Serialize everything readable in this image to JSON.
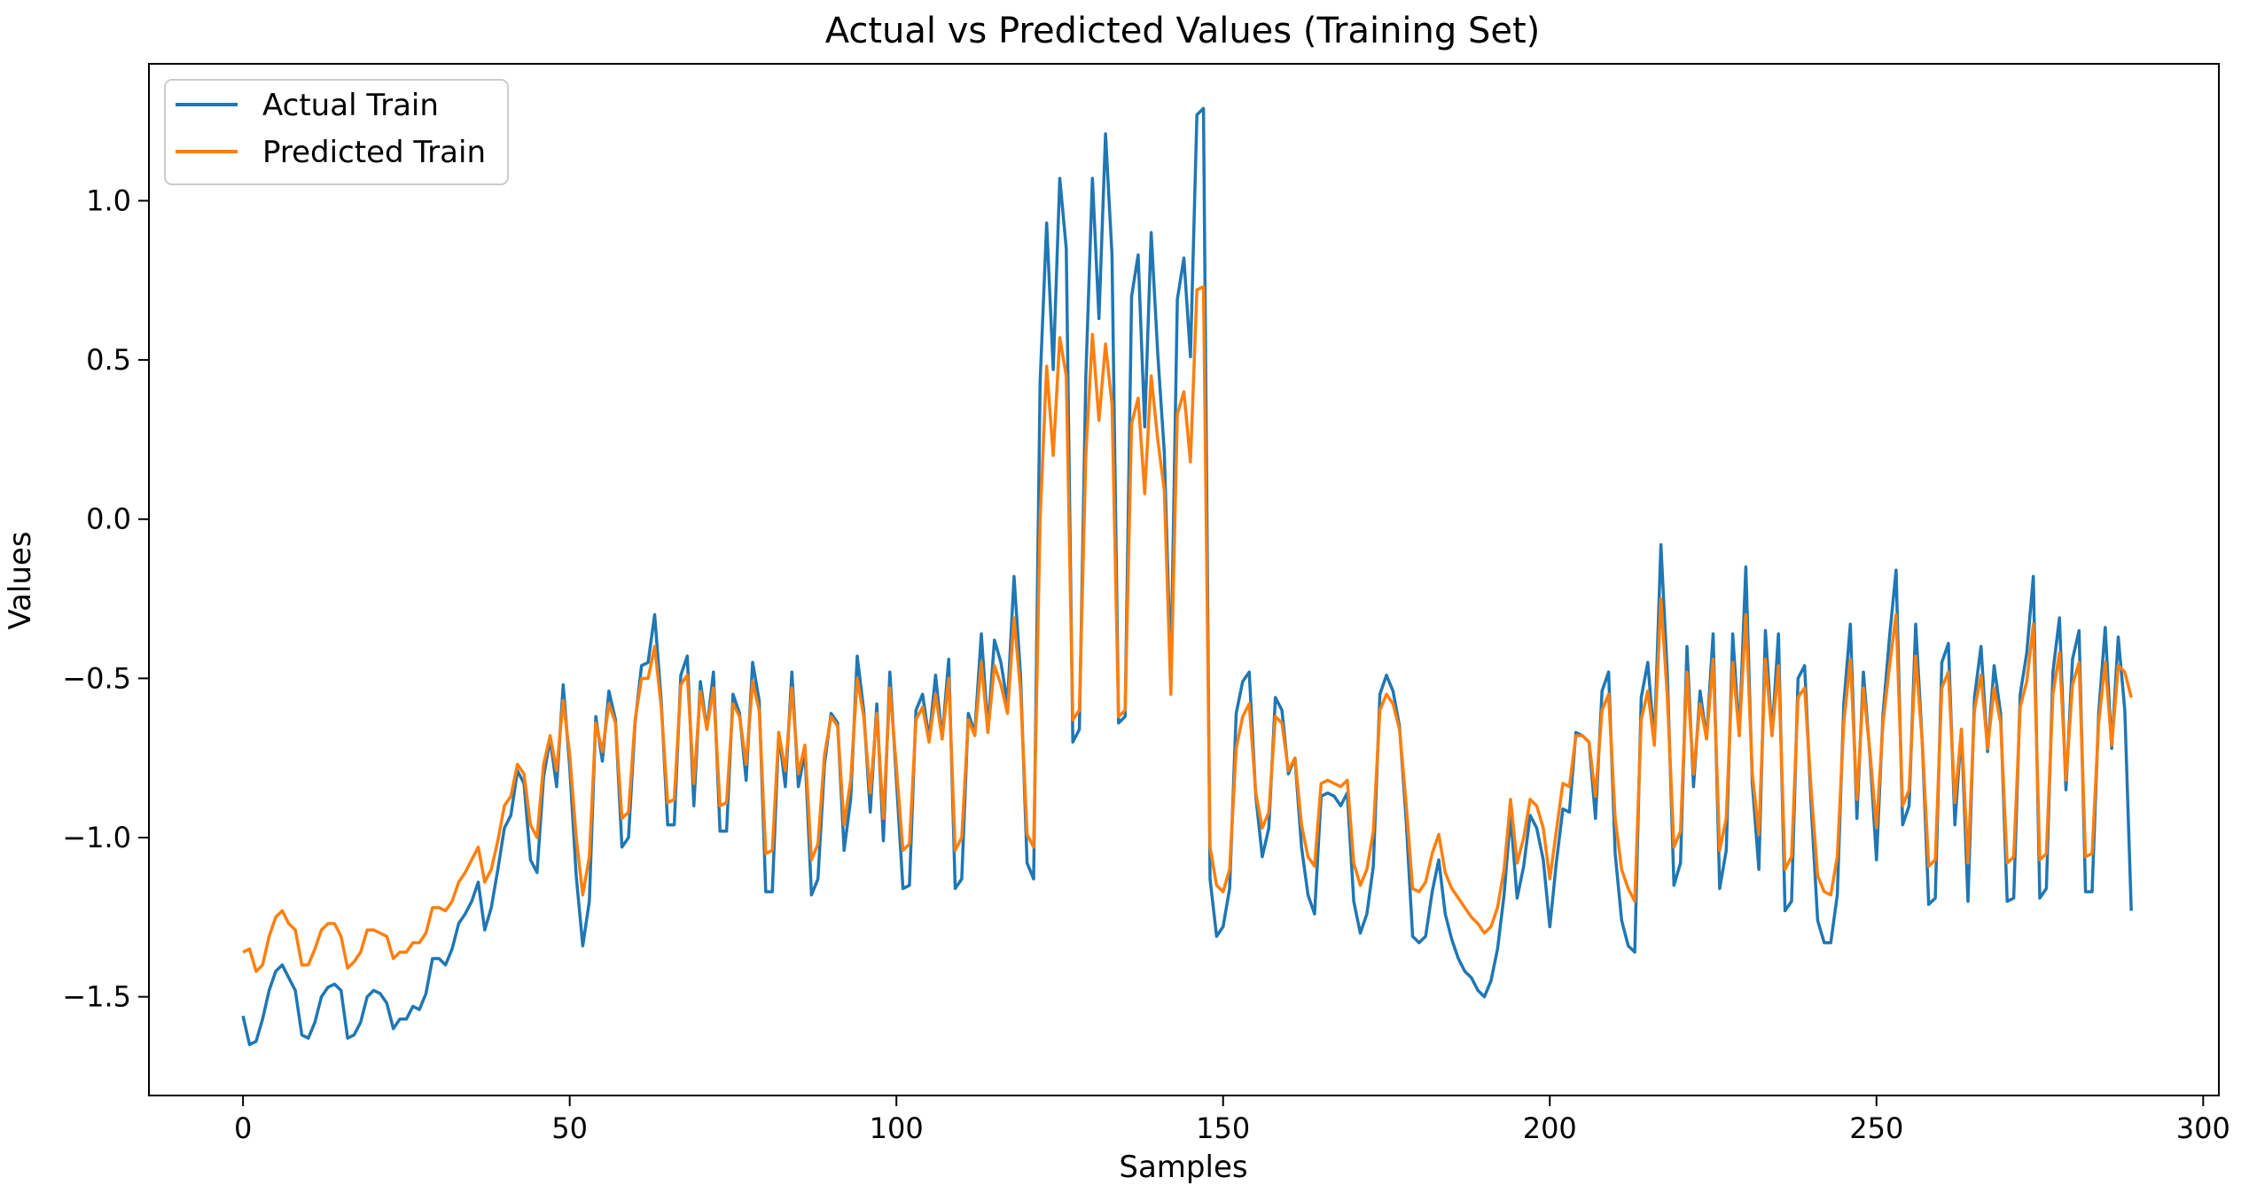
{
  "chart_data": {
    "type": "line",
    "title": "Actual vs Predicted Values (Training Set)",
    "xlabel": "Samples",
    "ylabel": "Values",
    "xlim": [
      -14.4,
      302.4
    ],
    "ylim": [
      -1.81,
      1.43
    ],
    "xticks": [
      0,
      50,
      100,
      150,
      200,
      250,
      300
    ],
    "yticks": [
      -1.5,
      -1.0,
      -0.5,
      0.0,
      0.5,
      1.0
    ],
    "xtick_labels": [
      "0",
      "50",
      "100",
      "150",
      "200",
      "250",
      "300"
    ],
    "ytick_labels": [
      "−1.5",
      "−1.0",
      "−0.5",
      "0.0",
      "0.5",
      "1.0"
    ],
    "grid": false,
    "legend_position": "upper-left",
    "series": [
      {
        "name": "Actual Train",
        "color": "#1f77b4",
        "values": [
          -1.56,
          -1.65,
          -1.64,
          -1.57,
          -1.48,
          -1.42,
          -1.4,
          -1.44,
          -1.48,
          -1.62,
          -1.63,
          -1.58,
          -1.5,
          -1.47,
          -1.46,
          -1.48,
          -1.63,
          -1.62,
          -1.58,
          -1.5,
          -1.48,
          -1.49,
          -1.52,
          -1.6,
          -1.57,
          -1.57,
          -1.53,
          -1.54,
          -1.49,
          -1.38,
          -1.38,
          -1.4,
          -1.35,
          -1.27,
          -1.24,
          -1.2,
          -1.14,
          -1.29,
          -1.22,
          -1.1,
          -0.97,
          -0.93,
          -0.79,
          -0.83,
          -1.07,
          -1.11,
          -0.81,
          -0.69,
          -0.84,
          -0.52,
          -0.78,
          -1.12,
          -1.34,
          -1.2,
          -0.62,
          -0.76,
          -0.54,
          -0.63,
          -1.03,
          -1.0,
          -0.64,
          -0.46,
          -0.45,
          -0.3,
          -0.57,
          -0.96,
          -0.96,
          -0.49,
          -0.43,
          -0.9,
          -0.51,
          -0.66,
          -0.48,
          -0.98,
          -0.98,
          -0.55,
          -0.61,
          -0.82,
          -0.45,
          -0.57,
          -1.17,
          -1.17,
          -0.67,
          -0.84,
          -0.48,
          -0.84,
          -0.73,
          -1.18,
          -1.13,
          -0.77,
          -0.61,
          -0.64,
          -1.04,
          -0.88,
          -0.43,
          -0.6,
          -0.92,
          -0.58,
          -1.01,
          -0.48,
          -0.82,
          -1.16,
          -1.15,
          -0.6,
          -0.55,
          -0.69,
          -0.49,
          -0.69,
          -0.44,
          -1.16,
          -1.13,
          -0.61,
          -0.67,
          -0.36,
          -0.66,
          -0.38,
          -0.45,
          -0.58,
          -0.18,
          -0.49,
          -1.08,
          -1.13,
          0.43,
          0.93,
          0.47,
          1.07,
          0.85,
          -0.7,
          -0.66,
          0.45,
          1.07,
          0.63,
          1.21,
          0.83,
          -0.64,
          -0.62,
          0.7,
          0.83,
          0.29,
          0.9,
          0.52,
          0.21,
          -0.49,
          0.69,
          0.82,
          0.51,
          1.27,
          1.29,
          -1.13,
          -1.31,
          -1.28,
          -1.16,
          -0.61,
          -0.51,
          -0.48,
          -0.87,
          -1.06,
          -0.97,
          -0.56,
          -0.6,
          -0.8,
          -0.75,
          -1.03,
          -1.18,
          -1.24,
          -0.87,
          -0.86,
          -0.87,
          -0.9,
          -0.86,
          -1.2,
          -1.3,
          -1.24,
          -1.09,
          -0.55,
          -0.49,
          -0.54,
          -0.65,
          -0.94,
          -1.31,
          -1.33,
          -1.31,
          -1.17,
          -1.07,
          -1.24,
          -1.32,
          -1.38,
          -1.42,
          -1.44,
          -1.48,
          -1.5,
          -1.45,
          -1.35,
          -1.18,
          -0.93,
          -1.19,
          -1.09,
          -0.93,
          -0.97,
          -1.07,
          -1.28,
          -1.08,
          -0.91,
          -0.92,
          -0.67,
          -0.68,
          -0.7,
          -0.94,
          -0.54,
          -0.48,
          -1.05,
          -1.26,
          -1.34,
          -1.36,
          -0.56,
          -0.45,
          -0.7,
          -0.08,
          -0.49,
          -1.15,
          -1.08,
          -0.4,
          -0.84,
          -0.54,
          -0.69,
          -0.36,
          -1.16,
          -1.04,
          -0.36,
          -0.68,
          -0.15,
          -0.83,
          -1.1,
          -0.35,
          -0.68,
          -0.36,
          -1.23,
          -1.2,
          -0.5,
          -0.46,
          -0.9,
          -1.26,
          -1.33,
          -1.33,
          -1.18,
          -0.58,
          -0.33,
          -0.94,
          -0.48,
          -0.74,
          -1.07,
          -0.61,
          -0.37,
          -0.16,
          -0.96,
          -0.9,
          -0.33,
          -0.7,
          -1.21,
          -1.19,
          -0.45,
          -0.39,
          -0.96,
          -0.66,
          -1.2,
          -0.56,
          -0.4,
          -0.73,
          -0.46,
          -0.61,
          -1.2,
          -1.19,
          -0.55,
          -0.42,
          -0.18,
          -1.19,
          -1.16,
          -0.48,
          -0.31,
          -0.85,
          -0.44,
          -0.35,
          -1.17,
          -1.17,
          -0.61,
          -0.34,
          -0.72,
          -0.37,
          -0.6,
          -1.23
        ]
      },
      {
        "name": "Predicted Train",
        "color": "#ff7f0e",
        "values": [
          -1.36,
          -1.35,
          -1.42,
          -1.4,
          -1.31,
          -1.25,
          -1.23,
          -1.27,
          -1.29,
          -1.4,
          -1.4,
          -1.35,
          -1.29,
          -1.27,
          -1.27,
          -1.31,
          -1.41,
          -1.39,
          -1.36,
          -1.29,
          -1.29,
          -1.3,
          -1.31,
          -1.38,
          -1.36,
          -1.36,
          -1.33,
          -1.33,
          -1.3,
          -1.22,
          -1.22,
          -1.23,
          -1.2,
          -1.14,
          -1.11,
          -1.07,
          -1.03,
          -1.14,
          -1.1,
          -1.01,
          -0.9,
          -0.87,
          -0.77,
          -0.8,
          -0.96,
          -1.0,
          -0.77,
          -0.68,
          -0.79,
          -0.57,
          -0.74,
          -1.0,
          -1.18,
          -1.06,
          -0.64,
          -0.73,
          -0.58,
          -0.64,
          -0.94,
          -0.92,
          -0.63,
          -0.5,
          -0.5,
          -0.4,
          -0.59,
          -0.89,
          -0.88,
          -0.52,
          -0.49,
          -0.83,
          -0.54,
          -0.66,
          -0.53,
          -0.9,
          -0.89,
          -0.58,
          -0.62,
          -0.77,
          -0.51,
          -0.6,
          -1.05,
          -1.04,
          -0.67,
          -0.79,
          -0.53,
          -0.8,
          -0.71,
          -1.07,
          -1.02,
          -0.74,
          -0.62,
          -0.65,
          -0.96,
          -0.82,
          -0.5,
          -0.62,
          -0.86,
          -0.61,
          -0.94,
          -0.53,
          -0.78,
          -1.04,
          -1.02,
          -0.63,
          -0.59,
          -0.7,
          -0.55,
          -0.69,
          -0.5,
          -1.04,
          -1.0,
          -0.63,
          -0.68,
          -0.45,
          -0.67,
          -0.46,
          -0.52,
          -0.61,
          -0.31,
          -0.54,
          -0.99,
          -1.03,
          0.0,
          0.48,
          0.2,
          0.57,
          0.45,
          -0.63,
          -0.6,
          0.2,
          0.58,
          0.31,
          0.55,
          0.36,
          -0.62,
          -0.6,
          0.3,
          0.38,
          0.08,
          0.45,
          0.25,
          0.09,
          -0.55,
          0.33,
          0.4,
          0.18,
          0.72,
          0.73,
          -1.03,
          -1.15,
          -1.17,
          -1.1,
          -0.72,
          -0.62,
          -0.58,
          -0.86,
          -0.97,
          -0.92,
          -0.62,
          -0.64,
          -0.79,
          -0.75,
          -0.96,
          -1.06,
          -1.09,
          -0.83,
          -0.82,
          -0.83,
          -0.84,
          -0.82,
          -1.08,
          -1.15,
          -1.1,
          -0.98,
          -0.6,
          -0.55,
          -0.58,
          -0.66,
          -0.89,
          -1.16,
          -1.17,
          -1.14,
          -1.05,
          -0.99,
          -1.11,
          -1.16,
          -1.19,
          -1.22,
          -1.25,
          -1.27,
          -1.3,
          -1.28,
          -1.22,
          -1.1,
          -0.88,
          -1.08,
          -1.0,
          -0.88,
          -0.9,
          -0.97,
          -1.13,
          -0.98,
          -0.83,
          -0.84,
          -0.68,
          -0.68,
          -0.7,
          -0.87,
          -0.6,
          -0.55,
          -0.94,
          -1.1,
          -1.16,
          -1.2,
          -0.63,
          -0.54,
          -0.71,
          -0.25,
          -0.56,
          -1.03,
          -0.98,
          -0.48,
          -0.8,
          -0.58,
          -0.69,
          -0.44,
          -1.04,
          -0.94,
          -0.45,
          -0.68,
          -0.3,
          -0.8,
          -0.99,
          -0.44,
          -0.68,
          -0.46,
          -1.1,
          -1.06,
          -0.56,
          -0.53,
          -0.85,
          -1.12,
          -1.17,
          -1.18,
          -1.06,
          -0.64,
          -0.44,
          -0.88,
          -0.53,
          -0.73,
          -0.97,
          -0.64,
          -0.46,
          -0.3,
          -0.9,
          -0.85,
          -0.43,
          -0.7,
          -1.09,
          -1.07,
          -0.53,
          -0.48,
          -0.89,
          -0.66,
          -1.08,
          -0.6,
          -0.49,
          -0.72,
          -0.53,
          -0.64,
          -1.08,
          -1.06,
          -0.59,
          -0.51,
          -0.33,
          -1.07,
          -1.05,
          -0.55,
          -0.42,
          -0.82,
          -0.52,
          -0.45,
          -1.06,
          -1.05,
          -0.64,
          -0.45,
          -0.71,
          -0.46,
          -0.48,
          -0.56
        ]
      }
    ]
  }
}
